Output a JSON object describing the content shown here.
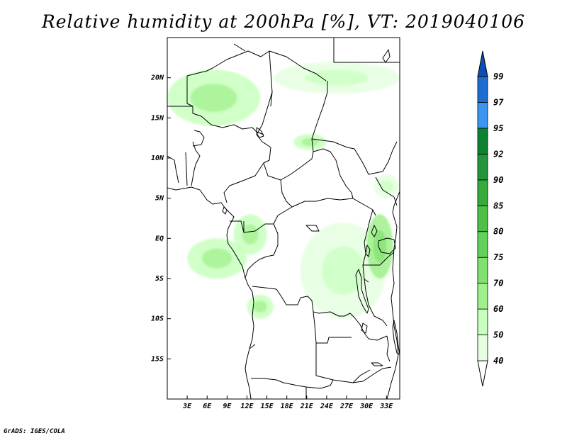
{
  "title": "Relative humidity at 200hPa [%], VT: 2019040106",
  "credit": "GrADS: IGES/COLA",
  "map": {
    "lon_range": [
      0,
      35
    ],
    "lat_range": [
      -20,
      25
    ],
    "lat_ticks": [
      {
        "value": 20,
        "label": "20N"
      },
      {
        "value": 15,
        "label": "15N"
      },
      {
        "value": 10,
        "label": "10N"
      },
      {
        "value": 5,
        "label": "5N"
      },
      {
        "value": 0,
        "label": "EQ"
      },
      {
        "value": -5,
        "label": "5S"
      },
      {
        "value": -10,
        "label": "10S"
      },
      {
        "value": -15,
        "label": "15S"
      }
    ],
    "lon_ticks": [
      {
        "value": 3,
        "label": "3E"
      },
      {
        "value": 6,
        "label": "6E"
      },
      {
        "value": 9,
        "label": "9E"
      },
      {
        "value": 12,
        "label": "12E"
      },
      {
        "value": 15,
        "label": "15E"
      },
      {
        "value": 18,
        "label": "18E"
      },
      {
        "value": 21,
        "label": "21E"
      },
      {
        "value": 24,
        "label": "24E"
      },
      {
        "value": 27,
        "label": "27E"
      },
      {
        "value": 30,
        "label": "30E"
      },
      {
        "value": 33,
        "label": "33E"
      }
    ]
  },
  "colorbar": {
    "levels": [
      "40",
      "50",
      "60",
      "70",
      "75",
      "80",
      "85",
      "90",
      "92",
      "95",
      "97",
      "99"
    ],
    "colors": [
      "#ffffff",
      "#e6ffe1",
      "#c8ffbe",
      "#a0f08c",
      "#82e16e",
      "#64d25a",
      "#4ec046",
      "#37aa3c",
      "#23963c",
      "#0f8232",
      "#3c96f0",
      "#1e6ed2",
      "#0a50b4"
    ]
  },
  "chart_data": {
    "type": "heatmap",
    "title": "Relative humidity at 200hPa [%], VT: 2019040106",
    "variable": "Relative humidity at 200hPa",
    "units": "%",
    "valid_time": "2019040106",
    "xlim": [
      0,
      35
    ],
    "ylim": [
      -20,
      25
    ],
    "contour_levels": [
      40,
      50,
      60,
      70,
      75,
      80,
      85,
      90,
      92,
      95,
      97,
      99
    ],
    "humid_regions": [
      {
        "lon": [
          0,
          14
        ],
        "lat": [
          14,
          21
        ],
        "value": 55
      },
      {
        "lon": [
          16,
          35
        ],
        "lat": [
          18,
          22
        ],
        "value": 45
      },
      {
        "lon": [
          19,
          24
        ],
        "lat": [
          11,
          13
        ],
        "value": 50
      },
      {
        "lon": [
          3,
          12
        ],
        "lat": [
          -5,
          0
        ],
        "value": 55
      },
      {
        "lon": [
          10,
          15
        ],
        "lat": [
          -2,
          3
        ],
        "value": 50
      },
      {
        "lon": [
          20,
          33
        ],
        "lat": [
          -10,
          2
        ],
        "value": 45
      },
      {
        "lon": [
          30,
          34
        ],
        "lat": [
          -5,
          3
        ],
        "value": 60
      },
      {
        "lon": [
          12,
          16
        ],
        "lat": [
          -10,
          -7
        ],
        "value": 50
      },
      {
        "lon": [
          31,
          35
        ],
        "lat": [
          5,
          8
        ],
        "value": 45
      }
    ]
  }
}
